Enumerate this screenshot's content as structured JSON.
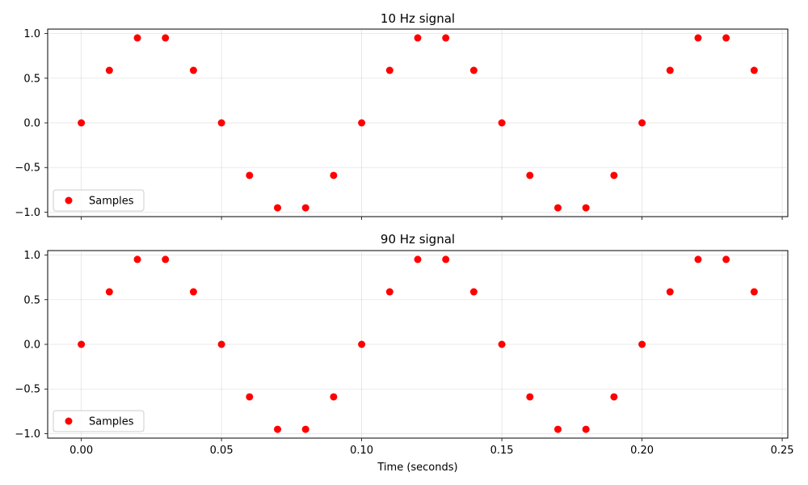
{
  "chart_data": [
    {
      "type": "scatter",
      "title": "10 Hz signal",
      "xlabel": "",
      "ylabel": "",
      "xlim": [
        -0.012,
        0.252
      ],
      "ylim": [
        -1.05,
        1.05
      ],
      "xticks": [
        0.0,
        0.05,
        0.1,
        0.15,
        0.2,
        0.25
      ],
      "xtick_labels": [],
      "yticks": [
        -1.0,
        -0.5,
        0.0,
        0.5,
        1.0
      ],
      "ytick_labels": [
        "−1.0",
        "−0.5",
        "0.0",
        "0.5",
        "1.0"
      ],
      "grid": true,
      "legend_position": "lower-left",
      "series": [
        {
          "name": "Samples",
          "color": "#ff0000",
          "x": [
            0.0,
            0.01,
            0.02,
            0.03,
            0.04,
            0.05,
            0.06,
            0.07,
            0.08,
            0.09,
            0.1,
            0.11,
            0.12,
            0.13,
            0.14,
            0.15,
            0.16,
            0.17,
            0.18,
            0.19,
            0.2,
            0.21,
            0.22,
            0.23,
            0.24
          ],
          "y": [
            0.0,
            0.588,
            0.951,
            0.951,
            0.588,
            0.0,
            -0.588,
            -0.951,
            -0.951,
            -0.588,
            0.0,
            0.588,
            0.951,
            0.951,
            0.588,
            0.0,
            -0.588,
            -0.951,
            -0.951,
            -0.588,
            0.0,
            0.588,
            0.951,
            0.951,
            0.588
          ]
        }
      ]
    },
    {
      "type": "scatter",
      "title": "90 Hz signal",
      "xlabel": "Time (seconds)",
      "ylabel": "",
      "xlim": [
        -0.012,
        0.252
      ],
      "ylim": [
        -1.05,
        1.05
      ],
      "xticks": [
        0.0,
        0.05,
        0.1,
        0.15,
        0.2,
        0.25
      ],
      "xtick_labels": [
        "0.00",
        "0.05",
        "0.10",
        "0.15",
        "0.20",
        "0.25"
      ],
      "yticks": [
        -1.0,
        -0.5,
        0.0,
        0.5,
        1.0
      ],
      "ytick_labels": [
        "−1.0",
        "−0.5",
        "0.0",
        "0.5",
        "1.0"
      ],
      "grid": true,
      "legend_position": "lower-left",
      "series": [
        {
          "name": "Samples",
          "color": "#ff0000",
          "x": [
            0.0,
            0.01,
            0.02,
            0.03,
            0.04,
            0.05,
            0.06,
            0.07,
            0.08,
            0.09,
            0.1,
            0.11,
            0.12,
            0.13,
            0.14,
            0.15,
            0.16,
            0.17,
            0.18,
            0.19,
            0.2,
            0.21,
            0.22,
            0.23,
            0.24
          ],
          "y": [
            0.0,
            0.588,
            0.951,
            0.951,
            0.588,
            0.0,
            -0.588,
            -0.951,
            -0.951,
            -0.588,
            0.0,
            0.588,
            0.951,
            0.951,
            0.588,
            0.0,
            -0.588,
            -0.951,
            -0.951,
            -0.588,
            0.0,
            0.588,
            0.951,
            0.951,
            0.588
          ]
        }
      ]
    }
  ]
}
